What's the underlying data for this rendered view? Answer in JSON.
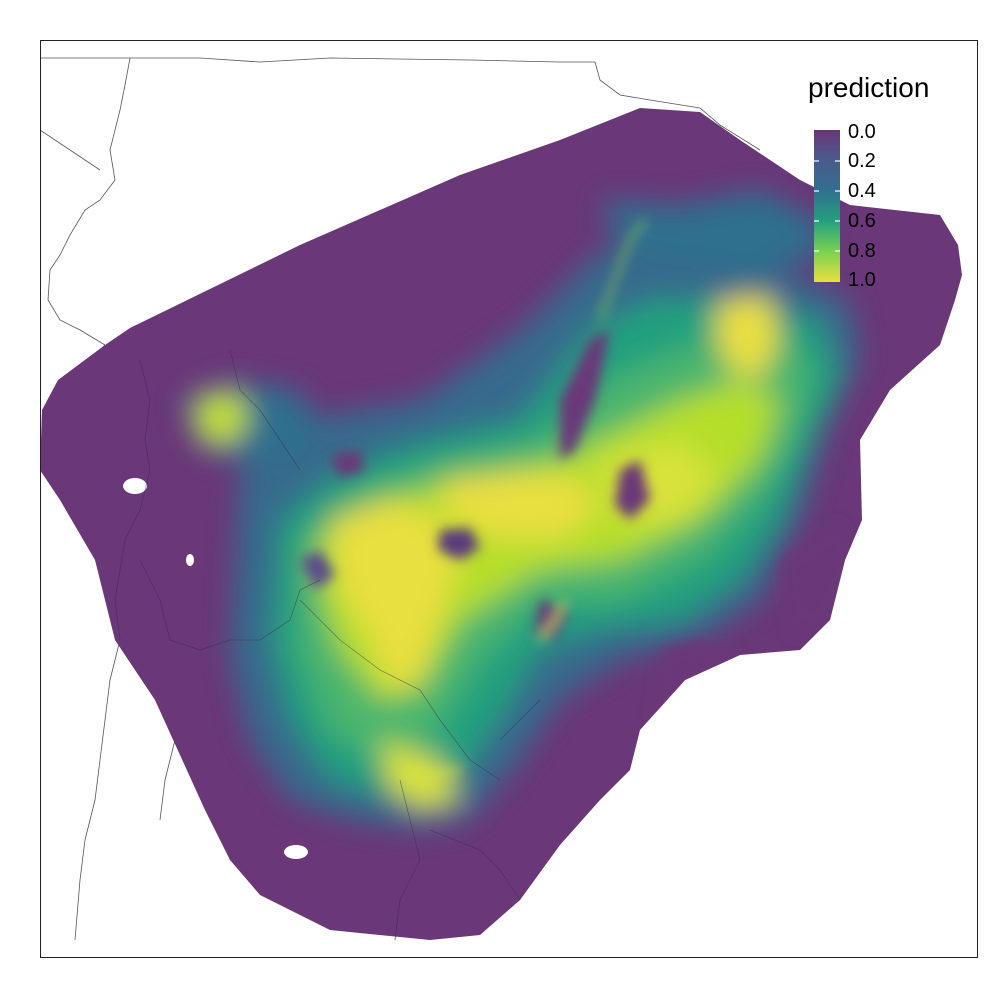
{
  "legend": {
    "title": "prediction",
    "ticks": [
      "0.0",
      "0.2",
      "0.4",
      "0.6",
      "0.8",
      "1.0"
    ],
    "colormap": "viridis",
    "range": [
      0,
      1
    ],
    "colors": [
      "#6a3778",
      "#4a5b8c",
      "#31708f",
      "#23a07e",
      "#7ad151",
      "#e8df3f"
    ]
  }
}
